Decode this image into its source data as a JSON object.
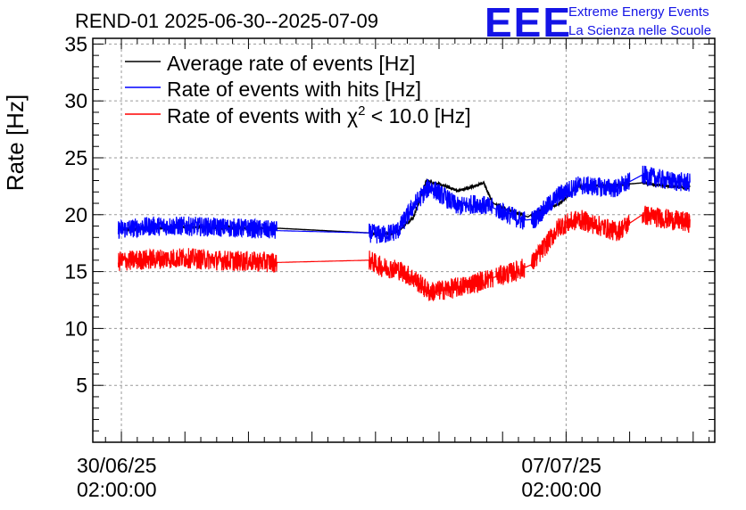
{
  "chart_data": {
    "type": "line",
    "title": "REND-01 2025-06-30--2025-07-09",
    "ylabel": "Rate [Hz]",
    "xlabel": "",
    "ylim": [
      0,
      35.5
    ],
    "xlim_days": [
      -0.45,
      9.34
    ],
    "grid": true,
    "yticks": [
      5,
      10,
      15,
      20,
      25,
      30,
      35
    ],
    "xticks": [
      {
        "day": 0,
        "label_date": "30/06/25",
        "label_time": "02:00:00"
      },
      {
        "day": 7,
        "label_date": "07/07/25",
        "label_time": "02:00:00"
      }
    ],
    "legend_position": "top-left",
    "x_unit": "days since 30/06/25 02:00:00",
    "series": [
      {
        "name": "Average rate of events [Hz]",
        "legend_label": "Average rate of events [Hz]",
        "color": "#000000",
        "noise": 0.35,
        "points": [
          [
            -0.05,
            18.7
          ],
          [
            1.0,
            18.9
          ],
          [
            2.5,
            18.8
          ],
          [
            3.9,
            18.4
          ],
          [
            4.1,
            18.2
          ],
          [
            4.35,
            18.5
          ],
          [
            4.6,
            19.8
          ],
          [
            4.8,
            23.0
          ],
          [
            5.1,
            22.5
          ],
          [
            5.3,
            22.1
          ],
          [
            5.5,
            22.4
          ],
          [
            5.7,
            22.8
          ],
          [
            5.85,
            21.0
          ],
          [
            6.1,
            20.4
          ],
          [
            6.4,
            19.8
          ],
          [
            6.45,
            20.0
          ],
          [
            6.9,
            21.0
          ],
          [
            7.2,
            22.5
          ],
          [
            7.8,
            22.6
          ],
          [
            8.2,
            22.8
          ],
          [
            8.6,
            22.5
          ],
          [
            8.95,
            22.4
          ]
        ]
      },
      {
        "name": "Rate of events with hits [Hz]",
        "legend_label": "Rate of events with hits [Hz]",
        "color": "#0000ff",
        "noise": 0.85,
        "points": [
          [
            -0.05,
            18.7
          ],
          [
            0.5,
            19.0
          ],
          [
            1.0,
            19.0
          ],
          [
            1.5,
            18.9
          ],
          [
            2.0,
            18.8
          ],
          [
            2.45,
            18.6
          ],
          [
            3.9,
            18.4
          ],
          [
            4.1,
            18.2
          ],
          [
            4.35,
            18.6
          ],
          [
            4.6,
            20.8
          ],
          [
            4.85,
            22.5
          ],
          [
            5.3,
            20.7
          ],
          [
            5.6,
            21.0
          ],
          [
            5.9,
            20.5
          ],
          [
            6.3,
            19.5
          ],
          [
            6.5,
            19.6
          ],
          [
            6.9,
            21.8
          ],
          [
            7.2,
            22.6
          ],
          [
            7.8,
            22.3
          ],
          [
            8.2,
            23.5
          ],
          [
            8.6,
            23.0
          ],
          [
            8.95,
            22.8
          ]
        ]
      },
      {
        "name": "Rate of events with χ² < 10.0 [Hz]",
        "legend_label": "Rate of events with",
        "legend_symbol": "χ",
        "legend_superscript": "2",
        "legend_suffix": "< 10.0 [Hz]",
        "color": "#ff0000",
        "noise": 0.9,
        "points": [
          [
            -0.05,
            15.9
          ],
          [
            0.5,
            16.1
          ],
          [
            1.0,
            16.2
          ],
          [
            1.5,
            16.0
          ],
          [
            2.0,
            15.9
          ],
          [
            2.45,
            15.8
          ],
          [
            3.9,
            16.0
          ],
          [
            4.1,
            15.4
          ],
          [
            4.35,
            15.2
          ],
          [
            4.6,
            14.4
          ],
          [
            4.85,
            13.2
          ],
          [
            5.3,
            13.6
          ],
          [
            5.8,
            14.4
          ],
          [
            6.2,
            15.0
          ],
          [
            6.45,
            15.6
          ],
          [
            6.9,
            19.0
          ],
          [
            7.2,
            19.6
          ],
          [
            7.8,
            18.5
          ],
          [
            8.2,
            20.0
          ],
          [
            8.6,
            19.6
          ],
          [
            8.95,
            19.3
          ]
        ]
      }
    ],
    "segments": [
      {
        "series": 0,
        "from": -0.05,
        "to": 2.45,
        "dense": true
      },
      {
        "series": 0,
        "from": 2.45,
        "to": 4.85,
        "dense": false
      },
      {
        "series": 0,
        "from": 4.85,
        "to": 5.85,
        "dense": false
      },
      {
        "series": 0,
        "from": 5.85,
        "to": 8.95,
        "dense": false
      }
    ]
  },
  "logo": {
    "mark": "EEE",
    "line1": "Extreme Energy Events",
    "line2": "La Scienza nelle Scuole"
  },
  "colors": {
    "frame": "#000000",
    "grid": "#9a9a9a",
    "logo": "#1414e6"
  }
}
